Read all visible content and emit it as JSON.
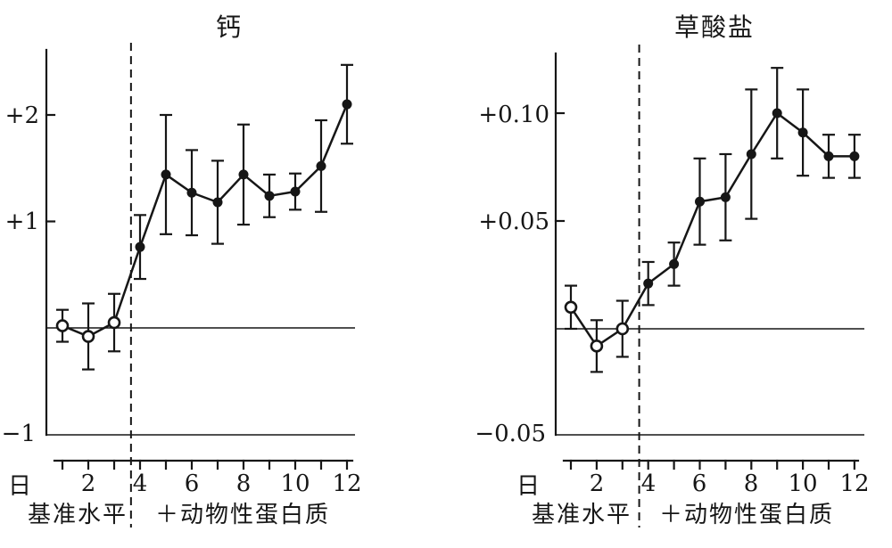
{
  "figure": {
    "background": "#ffffff",
    "ink": "#161616"
  },
  "chart_data": [
    {
      "type": "line",
      "title": "钙",
      "xlabel": "日",
      "ylabel": "",
      "x": [
        1,
        2,
        3,
        4,
        5,
        6,
        7,
        8,
        9,
        10,
        11,
        12
      ],
      "x_ticks_at": [
        2,
        4,
        6,
        8,
        10,
        12
      ],
      "x_tick_labels": [
        "2",
        "4",
        "6",
        "8",
        "10",
        "12"
      ],
      "y_ticks": [
        {
          "label": "+2",
          "value": 2
        },
        {
          "label": "+1",
          "value": 1
        },
        {
          "label": "−1",
          "value": -1
        }
      ],
      "ylim": [
        -1.0,
        2.61
      ],
      "zero_line": true,
      "grid": false,
      "series": [
        {
          "name": "钙",
          "values": [
            0.02,
            -0.08,
            0.05,
            0.76,
            1.44,
            1.27,
            1.18,
            1.44,
            1.24,
            1.28,
            1.52,
            2.1
          ],
          "errors": [
            0.15,
            0.31,
            0.27,
            0.3,
            0.56,
            0.4,
            0.39,
            0.47,
            0.2,
            0.17,
            0.43,
            0.37
          ],
          "open_marker_days": [
            1,
            2,
            3
          ]
        }
      ],
      "phase_divider_after_day": 3.65,
      "phase_labels": [
        {
          "text": "基准水平"
        },
        {
          "text": "＋动物性蛋白质"
        }
      ]
    },
    {
      "type": "line",
      "title": "草酸盐",
      "xlabel": "日",
      "ylabel": "",
      "x": [
        1,
        2,
        3,
        4,
        5,
        6,
        7,
        8,
        9,
        10,
        11,
        12
      ],
      "x_ticks_at": [
        2,
        4,
        6,
        8,
        10,
        12
      ],
      "x_tick_labels": [
        "2",
        "4",
        "6",
        "8",
        "10",
        "12"
      ],
      "y_ticks": [
        {
          "label": "+0.10",
          "value": 0.1
        },
        {
          "label": "+0.05",
          "value": 0.05
        },
        {
          "label": "−0.05",
          "value": -0.05
        }
      ],
      "ylim": [
        -0.05,
        0.128
      ],
      "zero_line": true,
      "grid": false,
      "series": [
        {
          "name": "草酸盐",
          "values": [
            0.01,
            -0.008,
            0.0,
            0.021,
            0.03,
            0.059,
            0.061,
            0.081,
            0.1,
            0.091,
            0.08,
            0.08
          ],
          "errors": [
            0.01,
            0.012,
            0.013,
            0.01,
            0.01,
            0.02,
            0.02,
            0.03,
            0.021,
            0.02,
            0.01,
            0.01
          ],
          "open_marker_days": [
            1,
            2,
            3
          ]
        }
      ],
      "phase_divider_after_day": 3.65,
      "phase_labels": [
        {
          "text": "基准水平"
        },
        {
          "text": "＋动物性蛋白质"
        }
      ]
    }
  ]
}
